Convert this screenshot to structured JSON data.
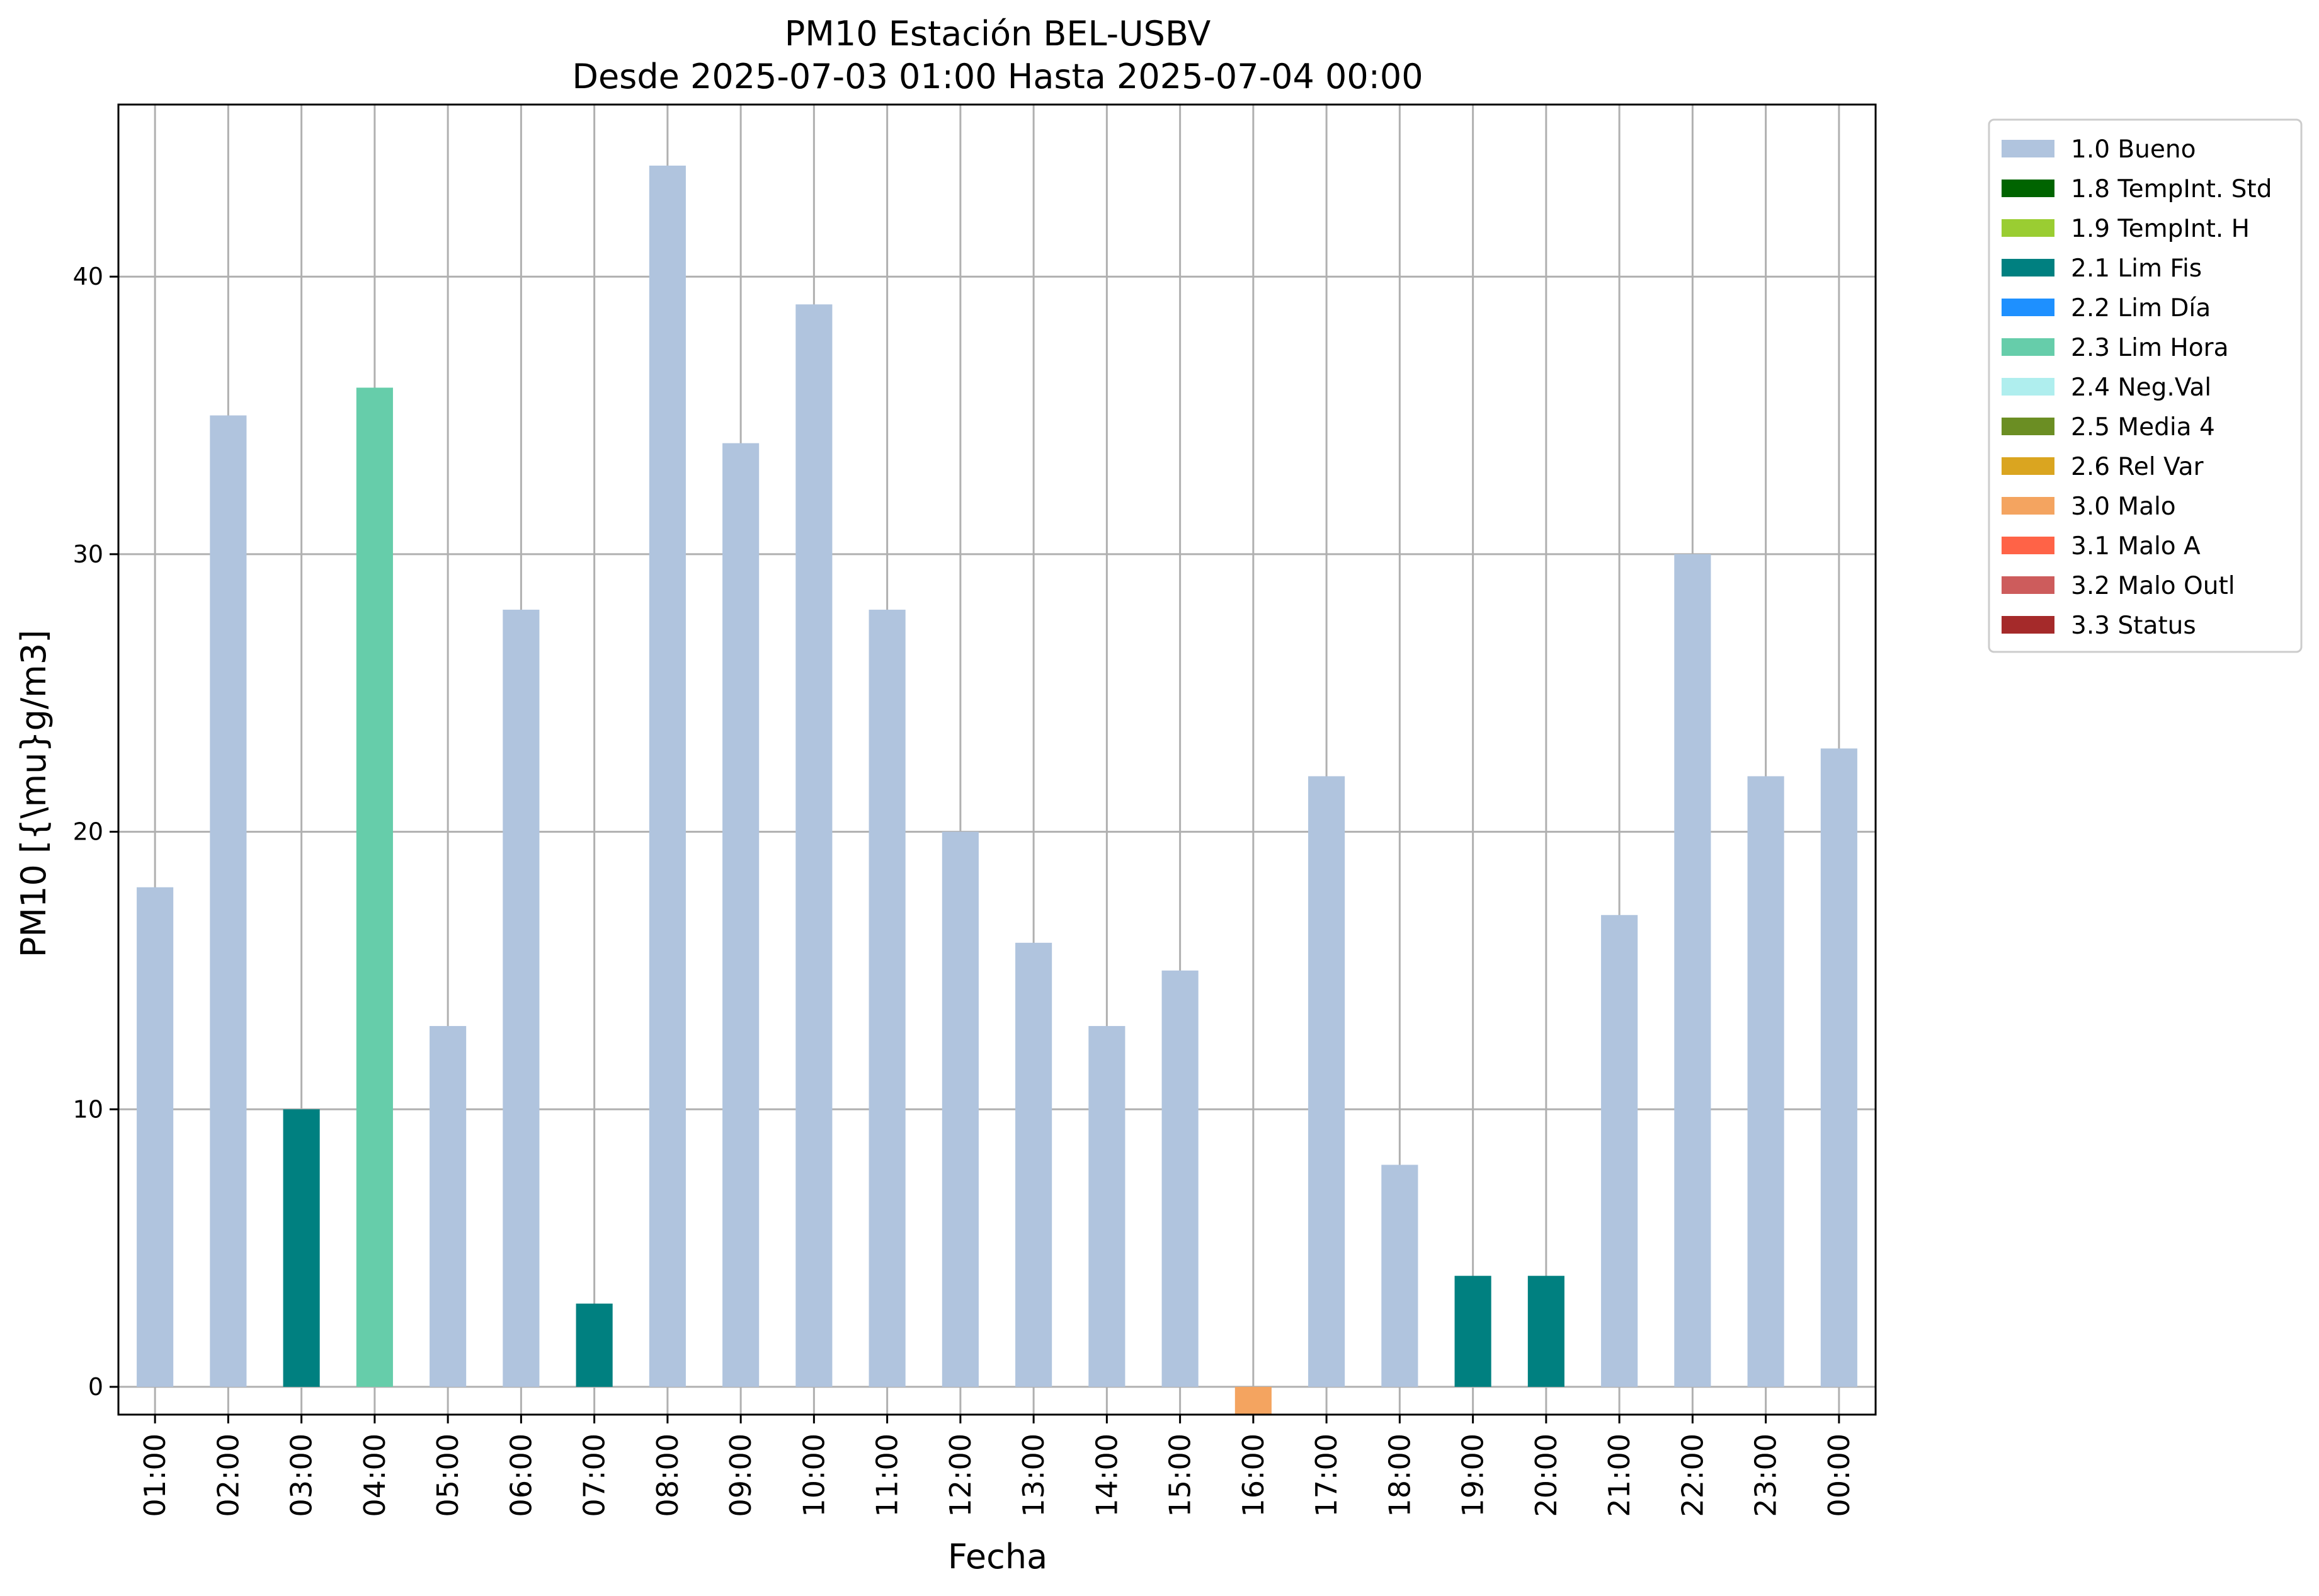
{
  "chart_data": {
    "type": "bar",
    "title": "PM10 Estación BEL-USBV",
    "subtitle": "Desde 2025-07-03 01:00 Hasta 2025-07-04 00:00",
    "xlabel": "Fecha",
    "ylabel": "PM10 [{\\mu}g/m3]",
    "ylim": [
      -1,
      46.2
    ],
    "yticks": [
      0,
      10,
      20,
      30,
      40
    ],
    "grid": true,
    "legend_position": "outside-top-right",
    "categories": [
      "01:00",
      "02:00",
      "03:00",
      "04:00",
      "05:00",
      "06:00",
      "07:00",
      "08:00",
      "09:00",
      "10:00",
      "11:00",
      "12:00",
      "13:00",
      "14:00",
      "15:00",
      "16:00",
      "17:00",
      "18:00",
      "19:00",
      "20:00",
      "21:00",
      "22:00",
      "23:00",
      "00:00"
    ],
    "values": [
      18,
      35,
      10,
      36,
      13,
      28,
      3,
      44,
      34,
      39,
      28,
      20,
      16,
      13,
      15,
      -1,
      22,
      8,
      4,
      4,
      17,
      30,
      22,
      23
    ],
    "flags": [
      "1.0 Bueno",
      "1.0 Bueno",
      "2.1 Lim Fis",
      "2.3 Lim Hora",
      "1.0 Bueno",
      "1.0 Bueno",
      "2.1 Lim Fis",
      "1.0 Bueno",
      "1.0 Bueno",
      "1.0 Bueno",
      "1.0 Bueno",
      "1.0 Bueno",
      "1.0 Bueno",
      "1.0 Bueno",
      "1.0 Bueno",
      "3.0 Malo",
      "1.0 Bueno",
      "1.0 Bueno",
      "2.1 Lim Fis",
      "2.1 Lim Fis",
      "1.0 Bueno",
      "1.0 Bueno",
      "1.0 Bueno",
      "1.0 Bueno"
    ],
    "legend": [
      {
        "label": "1.0 Bueno",
        "color": "#b0c4de"
      },
      {
        "label": "1.8 TempInt. Std",
        "color": "#006400"
      },
      {
        "label": "1.9 TempInt. H",
        "color": "#9acd32"
      },
      {
        "label": "2.1 Lim Fis",
        "color": "#008080"
      },
      {
        "label": "2.2 Lim Día",
        "color": "#1e90ff"
      },
      {
        "label": "2.3 Lim Hora",
        "color": "#66cdaa"
      },
      {
        "label": "2.4 Neg.Val",
        "color": "#afeeee"
      },
      {
        "label": "2.5 Media 4",
        "color": "#6b8e23"
      },
      {
        "label": "2.6 Rel Var",
        "color": "#daa520"
      },
      {
        "label": "3.0 Malo",
        "color": "#f4a460"
      },
      {
        "label": "3.1 Malo A",
        "color": "#ff6347"
      },
      {
        "label": "3.2 Malo Outl",
        "color": "#cd5c5c"
      },
      {
        "label": "3.3 Status",
        "color": "#a52a2a"
      }
    ]
  }
}
